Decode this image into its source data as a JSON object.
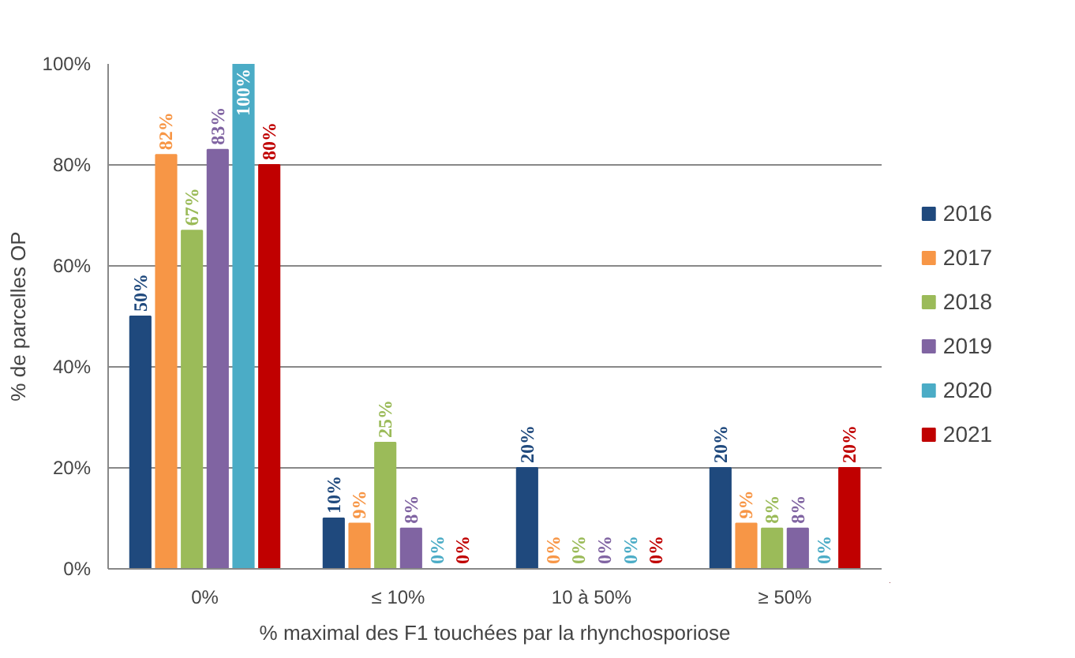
{
  "chart_data": {
    "type": "bar",
    "xlabel": "% maximal des F1 touchées par la rhynchosporiose",
    "ylabel": "% de parcelles OP",
    "categories": [
      "0%",
      "≤ 10%",
      "10 à 50%",
      "≥ 50%"
    ],
    "series": [
      {
        "name": "2016",
        "color": "#1f497d",
        "values": [
          50,
          10,
          20,
          20
        ],
        "value_labels": [
          "50%",
          "10%",
          "20%",
          "20%"
        ]
      },
      {
        "name": "2017",
        "color": "#f79646",
        "values": [
          82,
          9,
          0,
          9
        ],
        "value_labels": [
          "82%",
          "9%",
          "0%",
          "9%"
        ]
      },
      {
        "name": "2018",
        "color": "#9bbb59",
        "values": [
          67,
          25,
          0,
          8
        ],
        "value_labels": [
          "67%",
          "25%",
          "0%",
          "8%"
        ]
      },
      {
        "name": "2019",
        "color": "#8064a2",
        "values": [
          83,
          8,
          0,
          8
        ],
        "value_labels": [
          "83%",
          "8%",
          "0%",
          "8%"
        ]
      },
      {
        "name": "2020",
        "color": "#4bacc6",
        "values": [
          100,
          0,
          0,
          0
        ],
        "value_labels": [
          "100%",
          "0%",
          "0%",
          "0%"
        ]
      },
      {
        "name": "2021",
        "color": "#c00000",
        "values": [
          80,
          0,
          0,
          20
        ],
        "value_labels": [
          "80%",
          "0%",
          "0%",
          "20%"
        ]
      }
    ],
    "ylim": [
      0,
      100
    ],
    "yticks": [
      {
        "value": 0,
        "label": "0%"
      },
      {
        "value": 20,
        "label": "20%"
      },
      {
        "value": 40,
        "label": "40%"
      },
      {
        "value": 60,
        "label": "60%"
      },
      {
        "value": 80,
        "label": "80%"
      },
      {
        "value": 100,
        "label": "100%"
      }
    ],
    "grid": "y",
    "legend": "right"
  }
}
